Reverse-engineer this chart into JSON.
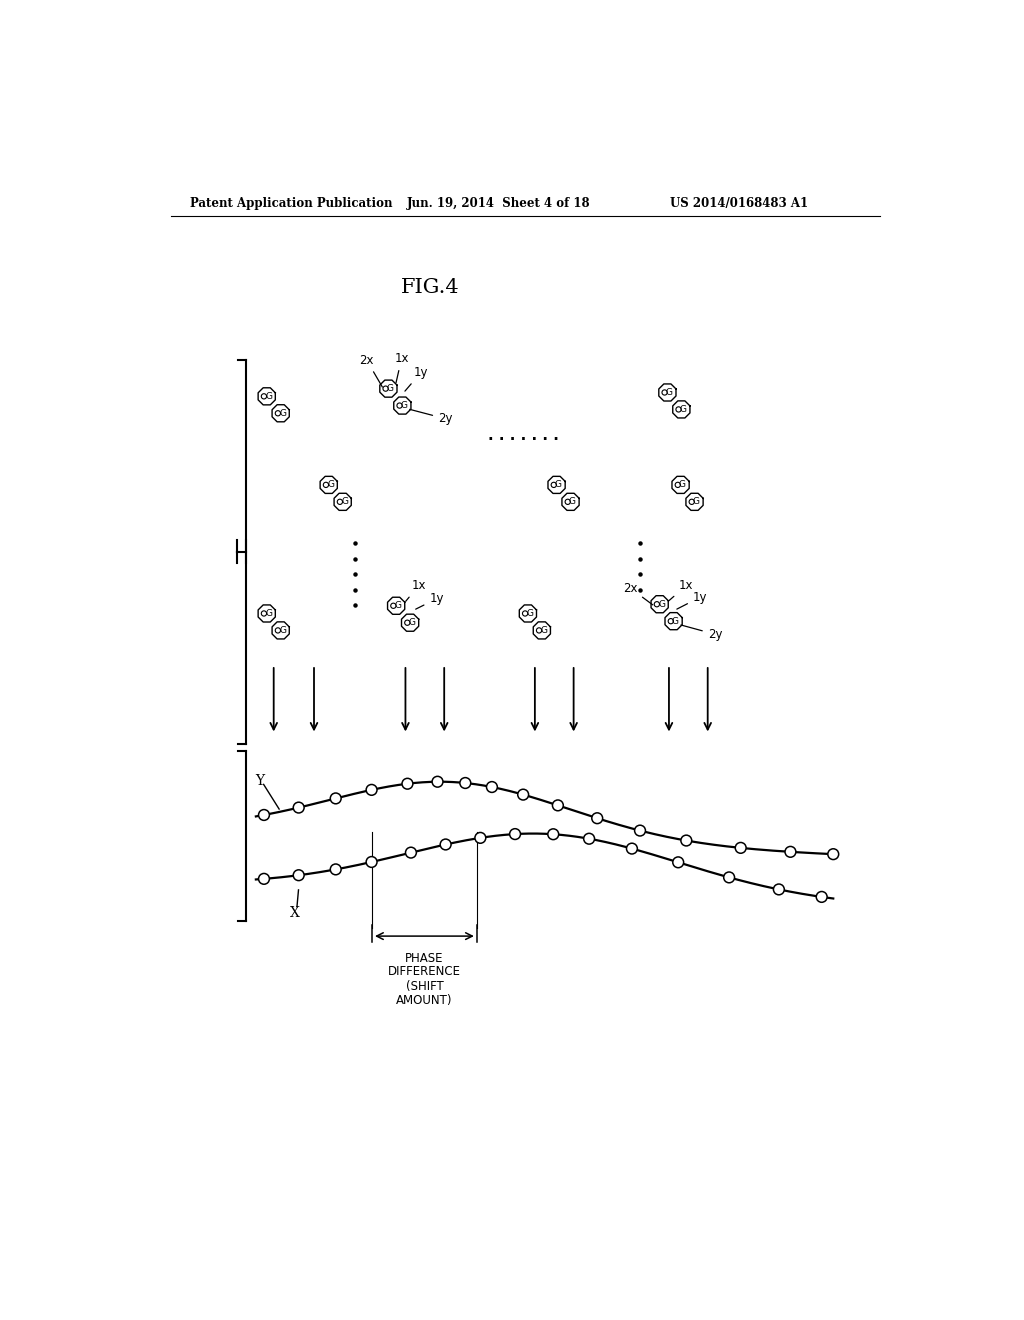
{
  "header_left": "Patent Application Publication",
  "header_mid": "Jun. 19, 2014  Sheet 4 of 18",
  "header_right": "US 2014/0168483 A1",
  "fig_label": "FIG.4",
  "background_color": "#ffffff",
  "text_color": "#000000"
}
